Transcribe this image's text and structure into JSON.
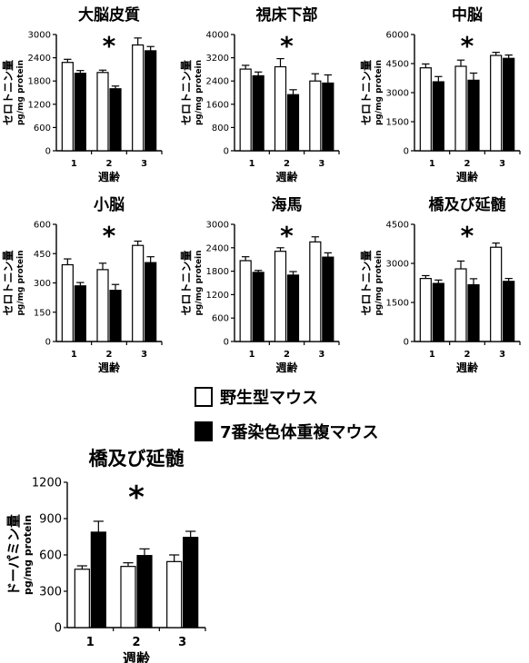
{
  "legend": {
    "wildtype_label": "野生型マウス",
    "trisomy_label": "7番染色体重複マウス",
    "wildtype_color": "#ffffff",
    "trisomy_color": "#000000"
  },
  "chart_data": [
    {
      "type": "bar",
      "title": "大脳皮質",
      "xlabel": "週齢",
      "ylabel": "セロトニン量",
      "ylabel2": "pg/mg protein",
      "categories": [
        "1",
        "2",
        "3"
      ],
      "ylim": [
        0,
        3000
      ],
      "yticks": [
        0,
        600,
        1200,
        1800,
        2400,
        3000
      ],
      "annotation": "*",
      "annotation_category": "2",
      "series": [
        {
          "name": "野生型マウス",
          "values": [
            2280,
            2020,
            2730
          ],
          "errors": [
            80,
            60,
            180
          ]
        },
        {
          "name": "7番染色体重複マウス",
          "values": [
            2000,
            1600,
            2580
          ],
          "errors": [
            70,
            70,
            110
          ]
        }
      ]
    },
    {
      "type": "bar",
      "title": "視床下部",
      "xlabel": "週齢",
      "ylabel": "セロトニン量",
      "ylabel2": "pg/mg protein",
      "categories": [
        "1",
        "2",
        "3"
      ],
      "ylim": [
        0,
        4000
      ],
      "yticks": [
        0,
        800,
        1600,
        2400,
        3200,
        4000
      ],
      "annotation": "*",
      "annotation_category": "2",
      "series": [
        {
          "name": "野生型マウス",
          "values": [
            2810,
            2890,
            2400
          ],
          "errors": [
            130,
            280,
            250
          ]
        },
        {
          "name": "7番染色体重複マウス",
          "values": [
            2580,
            1930,
            2330
          ],
          "errors": [
            130,
            170,
            280
          ]
        }
      ]
    },
    {
      "type": "bar",
      "title": "中脳",
      "xlabel": "週齢",
      "ylabel": "セロトニン量",
      "ylabel2": "pg/mg protein",
      "categories": [
        "1",
        "2",
        "3"
      ],
      "ylim": [
        0,
        6000
      ],
      "yticks": [
        0,
        1500,
        3000,
        4500,
        6000
      ],
      "annotation": "*",
      "annotation_category": "2",
      "series": [
        {
          "name": "野生型マウス",
          "values": [
            4280,
            4360,
            4920
          ],
          "errors": [
            200,
            320,
            160
          ]
        },
        {
          "name": "7番染色体重複マウス",
          "values": [
            3560,
            3640,
            4770
          ],
          "errors": [
            270,
            370,
            170
          ]
        }
      ]
    },
    {
      "type": "bar",
      "title": "小脳",
      "xlabel": "週齢",
      "ylabel": "セロトニン量",
      "ylabel2": "pg/mg protein",
      "categories": [
        "1",
        "2",
        "3"
      ],
      "ylim": [
        0,
        600
      ],
      "yticks": [
        0,
        150,
        300,
        450,
        600
      ],
      "annotation": "*",
      "annotation_category": "2",
      "series": [
        {
          "name": "野生型マウス",
          "values": [
            393,
            368,
            492
          ],
          "errors": [
            30,
            33,
            22
          ]
        },
        {
          "name": "7番染色体重複マウス",
          "values": [
            285,
            262,
            404
          ],
          "errors": [
            17,
            30,
            30
          ]
        }
      ]
    },
    {
      "type": "bar",
      "title": "海馬",
      "xlabel": "週齢",
      "ylabel": "セロトニン量",
      "ylabel2": "pg/mg protein",
      "categories": [
        "1",
        "2",
        "3"
      ],
      "ylim": [
        0,
        3000
      ],
      "yticks": [
        0,
        600,
        1200,
        1800,
        2400,
        3000
      ],
      "annotation": "*",
      "annotation_category": "2",
      "series": [
        {
          "name": "野生型マウス",
          "values": [
            2070,
            2310,
            2550
          ],
          "errors": [
            100,
            90,
            130
          ]
        },
        {
          "name": "7番染色体重複マウス",
          "values": [
            1770,
            1700,
            2160
          ],
          "errors": [
            50,
            90,
            110
          ]
        }
      ]
    },
    {
      "type": "bar",
      "title": "橋及び延髄",
      "xlabel": "週齢",
      "ylabel": "セロトニン量",
      "ylabel2": "pg/mg protein",
      "categories": [
        "1",
        "2",
        "3"
      ],
      "ylim": [
        0,
        4500
      ],
      "yticks": [
        0,
        1500,
        3000,
        4500
      ],
      "annotation": "*",
      "annotation_category": "2",
      "series": [
        {
          "name": "野生型マウス",
          "values": [
            2420,
            2790,
            3620
          ],
          "errors": [
            110,
            300,
            160
          ]
        },
        {
          "name": "7番染色体重複マウス",
          "values": [
            2230,
            2180,
            2310
          ],
          "errors": [
            130,
            230,
            110
          ]
        }
      ]
    },
    {
      "type": "bar",
      "title": "橋及び延髄",
      "xlabel": "週齢",
      "ylabel": "ドーパミン量",
      "ylabel2": "pg/mg protein",
      "categories": [
        "1",
        "2",
        "3"
      ],
      "ylim": [
        0,
        1200
      ],
      "yticks": [
        0,
        300,
        600,
        900,
        1200
      ],
      "annotation": "*",
      "annotation_category": "2",
      "series": [
        {
          "name": "野生型マウス",
          "values": [
            482,
            505,
            545
          ],
          "errors": [
            28,
            30,
            55
          ]
        },
        {
          "name": "7番染色体重複マウス",
          "values": [
            788,
            595,
            745
          ],
          "errors": [
            90,
            55,
            50
          ]
        }
      ]
    }
  ]
}
